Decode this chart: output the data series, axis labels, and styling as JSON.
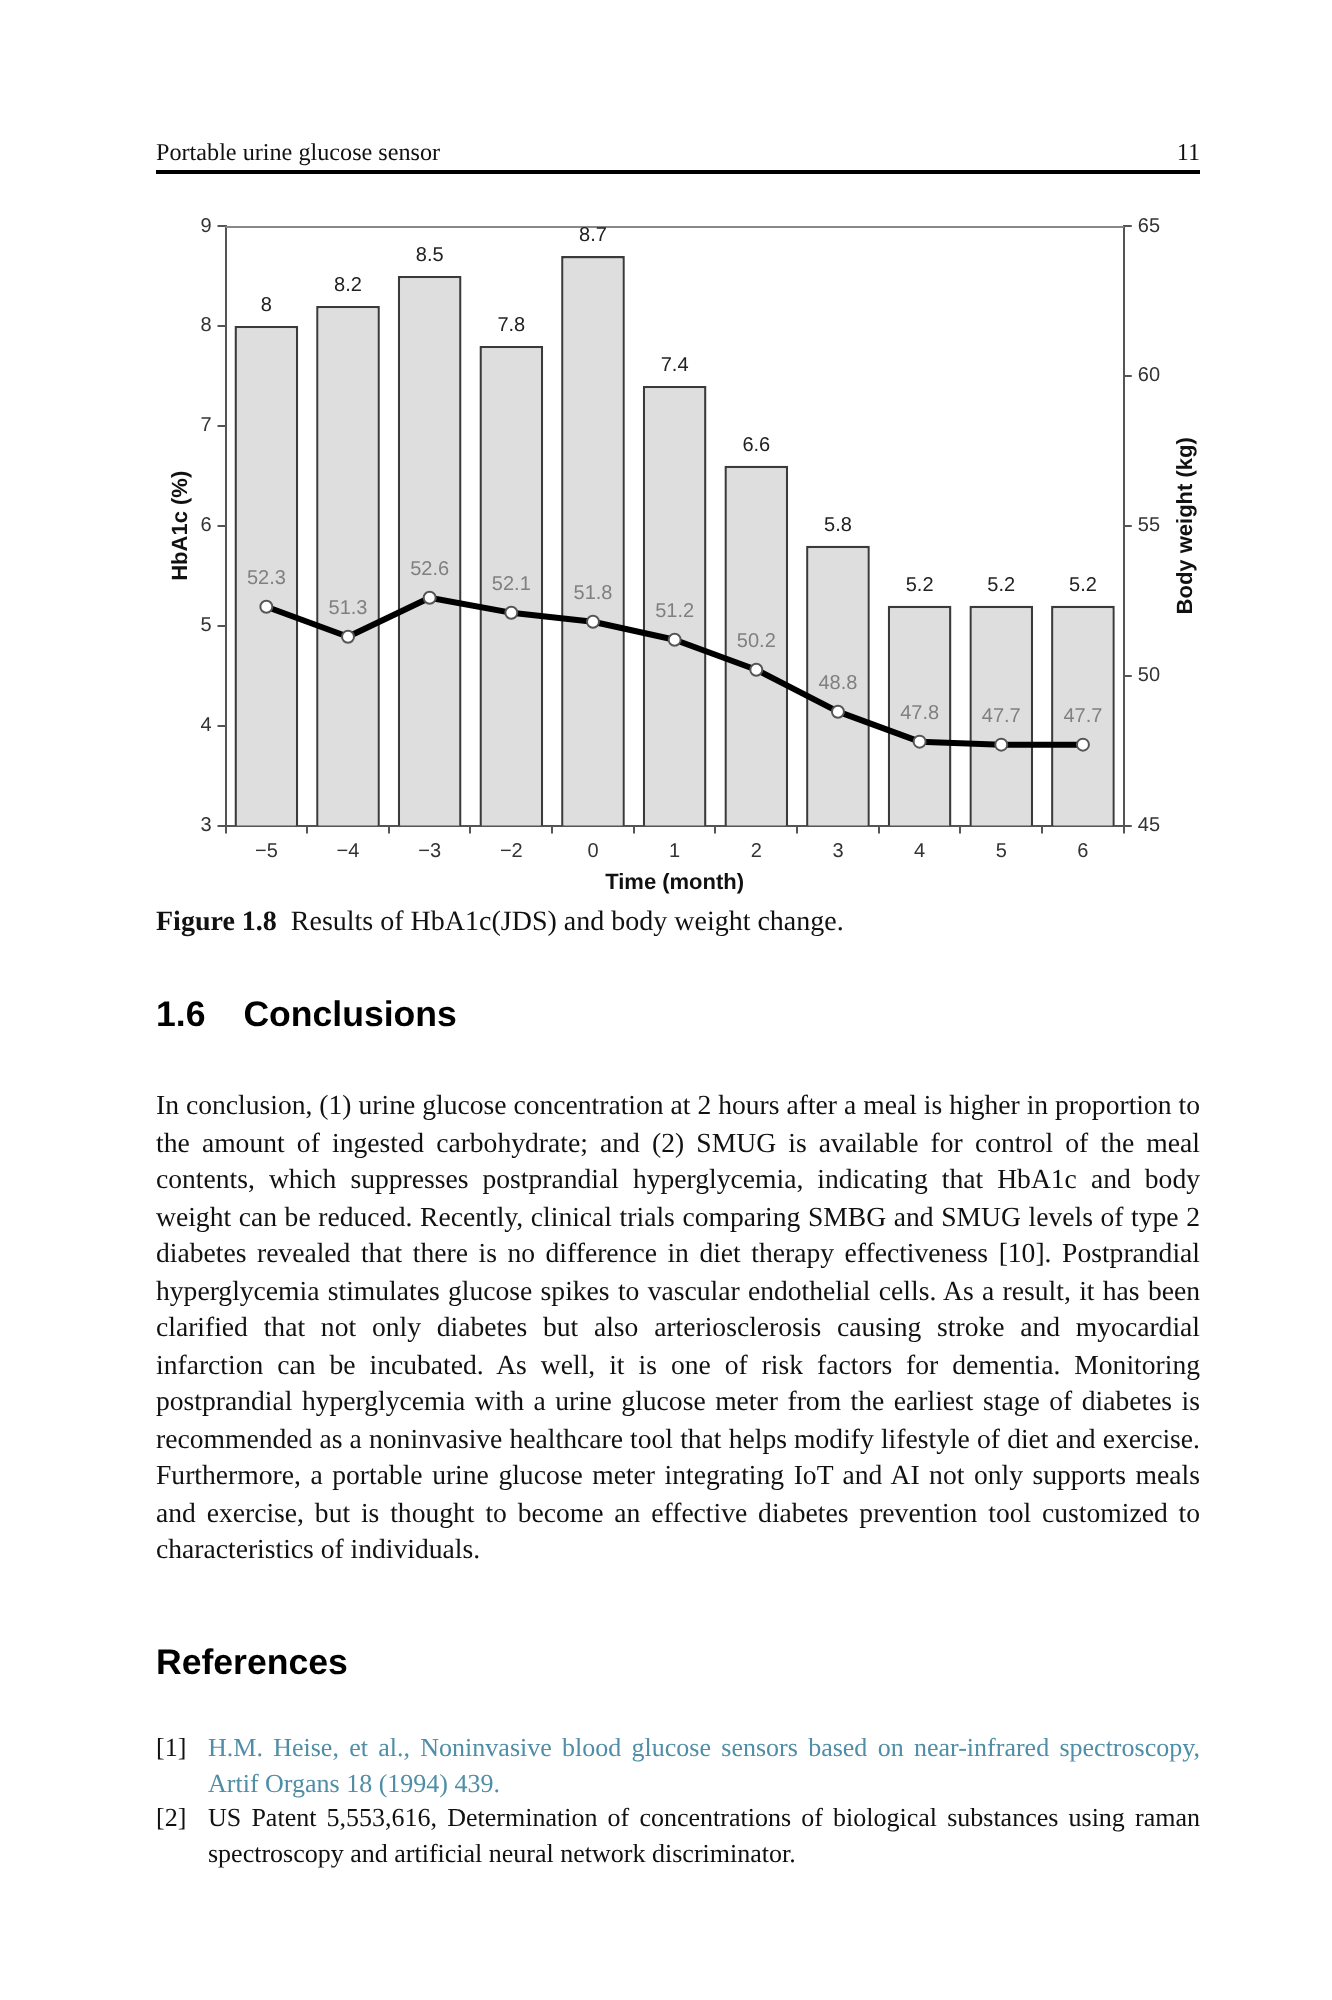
{
  "chart_data": {
    "type": "bar",
    "xlabel": "Time (month)",
    "ylabel": "HbA1c (%)",
    "y2label": "Body weight (kg)",
    "categories": [
      "−5",
      "−4",
      "−3",
      "−2",
      "0",
      "1",
      "2",
      "3",
      "4",
      "5",
      "6"
    ],
    "series": [
      {
        "color": "#dedede",
        "values": [
          8,
          8.2,
          8.5,
          7.8,
          8.7,
          7.4,
          6.6,
          5.8,
          5.2,
          5.2,
          5.2
        ]
      },
      {
        "type": "line",
        "axis": "y2",
        "color": "#000000",
        "marker": "circle",
        "values": [
          52.3,
          51.3,
          52.6,
          52.1,
          51.8,
          51.2,
          50.2,
          48.8,
          47.8,
          47.7,
          47.7
        ]
      }
    ],
    "ylim": [
      3,
      9
    ],
    "yticks": [
      3,
      4,
      5,
      6,
      7,
      8,
      9
    ],
    "y2lim": [
      45,
      65
    ],
    "y2ticks": [
      45,
      50,
      55,
      60,
      65
    ],
    "data_labels": true,
    "annotations": [
      "Portable urine glucose sensor",
      "11",
      "Figure 1.8 Results of HbA1c(JDS) and body weight change.",
      "1.6 Conclusions",
      "In conclusion, (1) urine glucose concentration at 2 hours after a meal is higher in proportion to the amount of ingested carbohydrate; and (2) SMUG is available for control of the meal contents, which suppresses postprandial hyperglycemia, indicating that HbA1c and body weight can be reduced. Recently, clinical trials comparing SMBG and SMUG levels of type 2 diabetes revealed that there is no difference in diet therapy effectiveness [10]. Postprandial hyperglycemia stimulates glucose spikes to vascular endothelial cells. As a result, it has been clarified that not only diabetes but also arteriosclerosis causing stroke and myocardial infarction can be incubated. As well, it is one of risk factors for dementia. Monitoring postprandial hyperglycemia with a urine glucose meter from the earliest stage of diabetes is recommended as a noninvasive healthcare tool that helps modify lifestyle of diet and exercise. Furthermore, a portable urine glucose meter integrating IoT and AI not only supports meals and exercise, but is thought to become an effective diabetes prevention tool customized to characteristics of individuals.",
      "References",
      "[1] H.M. Heise, et al., Noninvasive blood glucose sensors based on near-infrared spectroscopy, Artif Organs 18 (1994) 439.",
      "[2] US Patent 5,553,616, Determination of concentrations of biological substances using raman spectroscopy and artificial neural network discriminator."
    ]
  }
}
